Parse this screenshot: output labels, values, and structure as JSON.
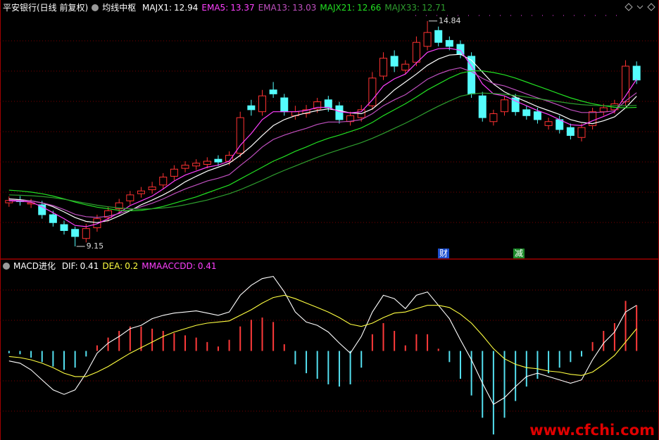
{
  "chart_data": [
    {
      "type": "candlestick",
      "title": "平安银行(日线 前复权)",
      "subtitle": "均线中枢",
      "up_color": "#ff3232",
      "down_color": "#54fcfc",
      "ylim": [
        8.83,
        15.37
      ],
      "open": [
        10.25,
        10.32,
        10.22,
        10.2,
        9.95,
        9.7,
        9.58,
        9.35,
        9.62,
        9.88,
        10.1,
        10.3,
        10.48,
        10.58,
        10.7,
        10.92,
        11.12,
        11.18,
        11.22,
        11.35,
        11.3,
        11.5,
        12.7,
        12.55,
        13.1,
        12.9,
        12.45,
        12.5,
        12.62,
        12.85,
        12.7,
        12.3,
        12.4,
        12.7,
        13.45,
        13.95,
        13.6,
        13.8,
        14.2,
        14.6,
        14.35,
        14.25,
        13.95,
        12.95,
        12.3,
        12.55,
        12.9,
        12.6,
        12.55,
        12.2,
        12.35,
        12.15,
        11.9,
        12.2,
        12.55,
        12.6,
        12.8,
        13.7
      ],
      "high": [
        10.41,
        10.42,
        10.35,
        10.3,
        10.05,
        9.8,
        9.65,
        9.72,
        9.95,
        10.15,
        10.35,
        10.55,
        10.65,
        10.78,
        11.0,
        11.2,
        11.3,
        11.35,
        11.4,
        11.45,
        11.55,
        12.55,
        12.85,
        13.1,
        13.3,
        13.0,
        12.7,
        12.72,
        12.9,
        12.95,
        12.8,
        12.55,
        12.72,
        13.55,
        14.05,
        14.1,
        13.85,
        14.45,
        14.84,
        14.7,
        14.45,
        14.35,
        14.05,
        13.05,
        12.6,
        12.95,
        13.0,
        12.7,
        12.65,
        12.4,
        12.45,
        12.25,
        12.25,
        12.65,
        12.75,
        12.85,
        13.85,
        13.82
      ],
      "low": [
        10.15,
        10.18,
        10.12,
        9.85,
        9.65,
        9.45,
        9.15,
        9.25,
        9.52,
        9.78,
        10.0,
        10.2,
        10.38,
        10.48,
        10.6,
        10.82,
        11.02,
        11.08,
        11.12,
        11.18,
        11.2,
        11.4,
        12.45,
        12.45,
        12.9,
        12.45,
        12.35,
        12.4,
        12.52,
        12.55,
        12.25,
        12.2,
        12.3,
        12.6,
        13.35,
        13.55,
        13.5,
        13.7,
        14.1,
        14.2,
        14.1,
        13.9,
        12.9,
        12.3,
        12.2,
        12.45,
        12.45,
        12.35,
        12.25,
        12.1,
        12.0,
        11.85,
        11.8,
        12.1,
        12.45,
        12.5,
        12.7,
        13.25
      ],
      "close": [
        10.31,
        10.28,
        10.25,
        9.95,
        9.75,
        9.55,
        9.4,
        9.6,
        9.85,
        10.05,
        10.25,
        10.45,
        10.55,
        10.65,
        10.9,
        11.1,
        11.2,
        11.25,
        11.3,
        11.28,
        11.45,
        12.4,
        12.6,
        12.95,
        13.0,
        12.55,
        12.55,
        12.6,
        12.8,
        12.65,
        12.35,
        12.45,
        12.6,
        13.4,
        13.9,
        13.7,
        13.75,
        14.3,
        14.55,
        14.3,
        14.2,
        14.0,
        13.0,
        12.4,
        12.5,
        12.85,
        12.55,
        12.45,
        12.35,
        12.3,
        12.1,
        11.95,
        12.15,
        12.55,
        12.65,
        12.75,
        13.7,
        13.35
      ],
      "series": [
        {
          "name": "MAJX1",
          "color": "#ffffff",
          "values": [
            10.35,
            10.33,
            10.3,
            10.25,
            10.15,
            10.02,
            9.88,
            9.78,
            9.75,
            9.8,
            9.92,
            10.05,
            10.2,
            10.32,
            10.45,
            10.6,
            10.78,
            10.92,
            11.05,
            11.15,
            11.25,
            11.45,
            11.68,
            11.95,
            12.2,
            12.35,
            12.45,
            12.52,
            12.58,
            12.62,
            12.58,
            12.52,
            12.5,
            12.62,
            12.85,
            13.1,
            13.3,
            13.5,
            13.72,
            13.88,
            13.98,
            14.0,
            13.85,
            13.55,
            13.25,
            13.05,
            12.92,
            12.8,
            12.68,
            12.58,
            12.48,
            12.35,
            12.28,
            12.25,
            12.32,
            12.42,
            12.65,
            12.94
          ]
        },
        {
          "name": "EMA5",
          "color": "#ff40ff",
          "values": [
            10.3,
            10.29,
            10.27,
            10.15,
            10.0,
            9.85,
            9.68,
            9.65,
            9.72,
            9.85,
            10.0,
            10.18,
            10.3,
            10.42,
            10.6,
            10.8,
            10.95,
            11.05,
            11.15,
            11.2,
            11.3,
            11.7,
            12.0,
            12.35,
            12.55,
            12.55,
            12.55,
            12.58,
            12.66,
            12.66,
            12.55,
            12.52,
            12.55,
            12.85,
            13.2,
            13.38,
            13.5,
            13.78,
            14.05,
            14.14,
            14.15,
            14.1,
            13.7,
            13.25,
            13.0,
            12.95,
            12.82,
            12.7,
            12.58,
            12.48,
            12.35,
            12.22,
            12.2,
            12.32,
            12.43,
            12.55,
            12.95,
            13.37
          ]
        },
        {
          "name": "EMA13",
          "color": "#c050c0",
          "values": [
            10.32,
            10.31,
            10.3,
            10.25,
            10.18,
            10.08,
            9.96,
            9.9,
            9.88,
            9.91,
            9.98,
            10.07,
            10.15,
            10.24,
            10.35,
            10.48,
            10.6,
            10.7,
            10.8,
            10.87,
            10.96,
            11.19,
            11.41,
            11.66,
            11.85,
            11.96,
            12.05,
            12.13,
            12.23,
            12.29,
            12.29,
            12.31,
            12.35,
            12.5,
            12.7,
            12.85,
            12.98,
            13.17,
            13.37,
            13.5,
            13.6,
            13.66,
            13.56,
            13.39,
            13.26,
            13.2,
            13.1,
            13.0,
            12.9,
            12.81,
            12.71,
            12.6,
            12.53,
            12.53,
            12.54,
            12.57,
            12.82,
            13.03
          ]
        },
        {
          "name": "MAJX21",
          "color": "#22e022",
          "values": [
            10.57,
            10.55,
            10.52,
            10.48,
            10.42,
            10.35,
            10.27,
            10.2,
            10.14,
            10.1,
            10.06,
            10.05,
            10.06,
            10.1,
            10.16,
            10.24,
            10.32,
            10.4,
            10.5,
            10.6,
            10.7,
            10.85,
            11.0,
            11.15,
            11.3,
            11.42,
            11.55,
            11.66,
            11.78,
            11.88,
            11.96,
            12.05,
            12.14,
            12.28,
            12.45,
            12.6,
            12.75,
            12.92,
            13.1,
            13.25,
            13.4,
            13.52,
            13.58,
            13.58,
            13.54,
            13.48,
            13.4,
            13.3,
            13.2,
            13.1,
            13.0,
            12.9,
            12.82,
            12.75,
            12.7,
            12.66,
            12.65,
            12.66
          ]
        },
        {
          "name": "MAJX33",
          "color": "#2e9e2e",
          "values": [
            10.45,
            10.44,
            10.43,
            10.41,
            10.38,
            10.34,
            10.29,
            10.24,
            10.19,
            10.15,
            10.12,
            10.1,
            10.09,
            10.1,
            10.12,
            10.15,
            10.2,
            10.26,
            10.32,
            10.4,
            10.48,
            10.58,
            10.7,
            10.82,
            10.95,
            11.07,
            11.18,
            11.29,
            11.4,
            11.5,
            11.59,
            11.68,
            11.77,
            11.88,
            12.0,
            12.13,
            12.26,
            12.4,
            12.55,
            12.69,
            12.82,
            12.94,
            13.0,
            13.02,
            13.01,
            12.99,
            12.96,
            12.92,
            12.88,
            12.84,
            12.8,
            12.76,
            12.73,
            12.71,
            12.7,
            12.7,
            12.7,
            12.71
          ]
        }
      ],
      "markers": [
        {
          "label": "财",
          "color": "#1d4fd0"
        },
        {
          "label": "减",
          "color": "#1d8a2a"
        }
      ]
    },
    {
      "type": "macd",
      "title": "MACD进化",
      "ylim": [
        -0.8,
        0.8
      ],
      "series": [
        {
          "name": "DIF",
          "color": "#ffffff",
          "values": [
            -0.09,
            -0.11,
            -0.17,
            -0.26,
            -0.35,
            -0.39,
            -0.35,
            -0.2,
            -0.02,
            0.07,
            0.13,
            0.2,
            0.23,
            0.29,
            0.32,
            0.34,
            0.35,
            0.36,
            0.34,
            0.32,
            0.35,
            0.5,
            0.59,
            0.65,
            0.67,
            0.53,
            0.35,
            0.26,
            0.23,
            0.17,
            0.07,
            -0.02,
            0.13,
            0.35,
            0.5,
            0.47,
            0.38,
            0.5,
            0.53,
            0.41,
            0.29,
            0.1,
            -0.08,
            -0.29,
            -0.48,
            -0.42,
            -0.32,
            -0.23,
            -0.2,
            -0.23,
            -0.26,
            -0.29,
            -0.26,
            -0.08,
            0.07,
            0.17,
            0.35,
            0.41
          ]
        },
        {
          "name": "DEA",
          "color": "#ffff40",
          "values": [
            -0.05,
            -0.06,
            -0.08,
            -0.11,
            -0.15,
            -0.2,
            -0.23,
            -0.23,
            -0.19,
            -0.14,
            -0.08,
            -0.02,
            0.03,
            0.08,
            0.13,
            0.17,
            0.2,
            0.23,
            0.25,
            0.26,
            0.27,
            0.32,
            0.37,
            0.43,
            0.48,
            0.5,
            0.47,
            0.43,
            0.39,
            0.35,
            0.3,
            0.24,
            0.22,
            0.25,
            0.3,
            0.34,
            0.35,
            0.38,
            0.41,
            0.41,
            0.39,
            0.33,
            0.25,
            0.14,
            0.02,
            -0.07,
            -0.12,
            -0.15,
            -0.16,
            -0.18,
            -0.19,
            -0.21,
            -0.22,
            -0.19,
            -0.12,
            -0.04,
            0.08,
            0.2
          ]
        },
        {
          "name": "MMAACCDD",
          "color": "#ff40ff",
          "up_color": "#ff3a3a",
          "down_color": "#54e0f0",
          "values": [
            -0.02,
            -0.03,
            -0.06,
            -0.1,
            -0.14,
            -0.17,
            -0.15,
            -0.05,
            0.05,
            0.12,
            0.18,
            0.22,
            0.22,
            0.2,
            0.18,
            0.16,
            0.14,
            0.12,
            0.08,
            0.04,
            0.1,
            0.22,
            0.28,
            0.3,
            0.26,
            0.06,
            -0.12,
            -0.2,
            -0.25,
            -0.3,
            -0.32,
            -0.3,
            -0.15,
            0.15,
            0.25,
            0.18,
            0.05,
            0.15,
            0.15,
            0.02,
            -0.1,
            -0.25,
            -0.4,
            -0.6,
            -0.75,
            -0.6,
            -0.45,
            -0.32,
            -0.25,
            -0.2,
            -0.15,
            -0.1,
            -0.05,
            0.08,
            0.18,
            0.25,
            0.45,
            0.41
          ]
        }
      ]
    }
  ],
  "watermark": "www.cfchi.com"
}
